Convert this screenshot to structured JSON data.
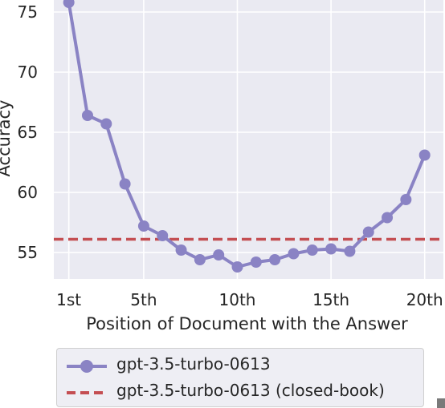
{
  "chart_data": {
    "type": "line",
    "title": "",
    "xlabel": "Position of Document with the Answer",
    "ylabel": "Accuracy",
    "x": [
      1,
      2,
      3,
      4,
      5,
      6,
      7,
      8,
      9,
      10,
      11,
      12,
      13,
      14,
      15,
      16,
      17,
      18,
      19,
      20
    ],
    "x_tick_values": [
      1,
      5,
      10,
      15,
      20
    ],
    "x_tick_labels": [
      "1st",
      "5th",
      "10th",
      "15th",
      "20th"
    ],
    "y_tick_values": [
      55,
      60,
      65,
      70,
      75
    ],
    "y_tick_labels": [
      "55",
      "60",
      "65",
      "70",
      "75"
    ],
    "xlim": [
      0.2,
      21
    ],
    "ylim": [
      52.8,
      76
    ],
    "grid": true,
    "legend_position": "bottom",
    "series": [
      {
        "name": "gpt-3.5-turbo-0613",
        "style": "line-markers",
        "color": "#8a83c4",
        "values": [
          75.8,
          66.4,
          65.7,
          60.7,
          57.2,
          56.4,
          55.2,
          54.4,
          54.8,
          53.8,
          54.2,
          54.4,
          54.9,
          55.2,
          55.3,
          55.1,
          56.7,
          57.9,
          59.4,
          63.1
        ]
      },
      {
        "name": "gpt-3.5-turbo-0613 (closed-book)",
        "style": "dashed-hline",
        "color": "#c44e52",
        "value": 56.1
      }
    ]
  }
}
